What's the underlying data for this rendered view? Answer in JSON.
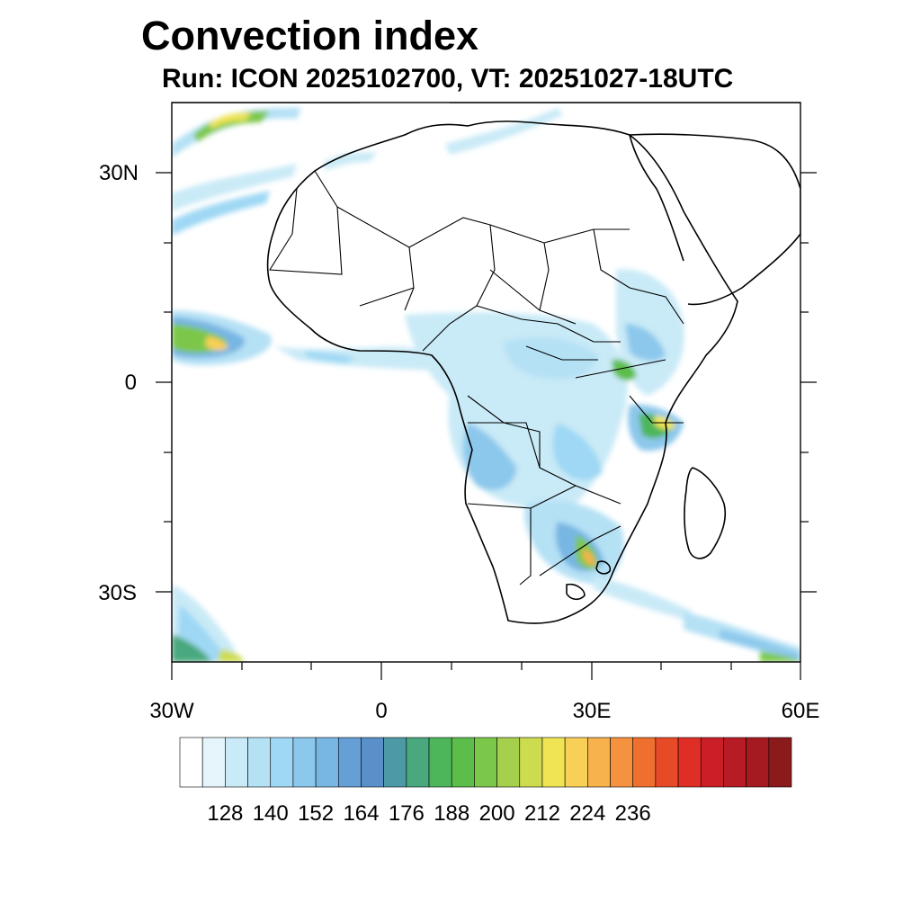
{
  "title": "Convection index",
  "subtitle": "Run: ICON 2025102700,  VT: 20251027-18UTC",
  "map": {
    "region": "Africa",
    "lat_range": [
      -40,
      40
    ],
    "lon_range": [
      -30,
      60
    ],
    "lat_ticks": [
      {
        "value": 30,
        "label": "30N"
      },
      {
        "value": 0,
        "label": "0"
      },
      {
        "value": -30,
        "label": "30S"
      }
    ],
    "lon_ticks": [
      {
        "value": -30,
        "label": "30W"
      },
      {
        "value": 0,
        "label": "0"
      },
      {
        "value": 30,
        "label": "30E"
      },
      {
        "value": 60,
        "label": "60E"
      }
    ]
  },
  "colorbar": {
    "colors": [
      "#ffffff",
      "#e6f5fc",
      "#c9eaf7",
      "#b5e1f5",
      "#9fd8f4",
      "#8cc8ec",
      "#78b6e3",
      "#659fd6",
      "#5a90ca",
      "#4d99a5",
      "#4aa87e",
      "#4db65a",
      "#5cbd4a",
      "#7bc74a",
      "#a6d04c",
      "#cddc4f",
      "#f0e454",
      "#f8cf57",
      "#f7b14d",
      "#f5923f",
      "#ef6f2e",
      "#e74a27",
      "#df2e25",
      "#cb1f27",
      "#b71b25",
      "#a51a20",
      "#8b1a1a"
    ],
    "labels": [
      "128",
      "140",
      "152",
      "164",
      "176",
      "188",
      "200",
      "212",
      "224",
      "236"
    ]
  }
}
